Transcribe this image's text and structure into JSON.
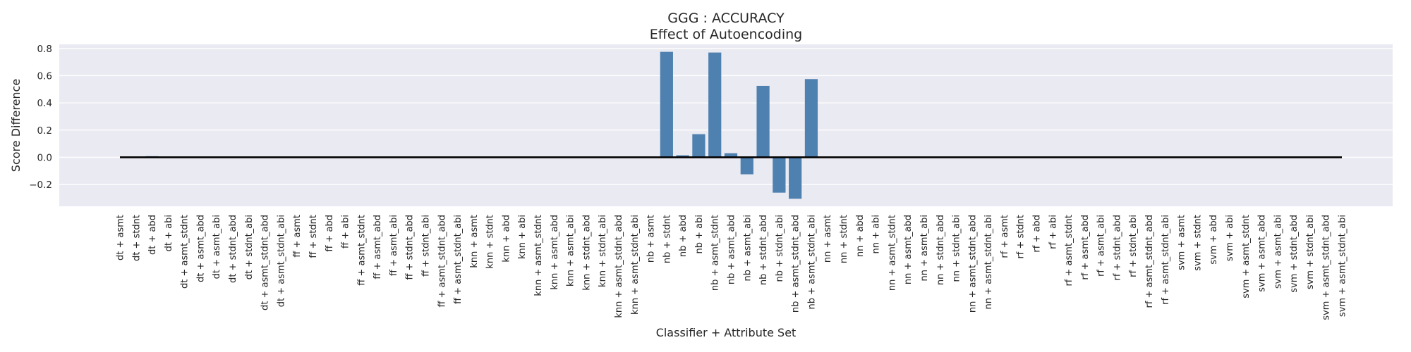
{
  "chart_data": {
    "type": "bar",
    "title": "GGG : ACCURACY",
    "subtitle": "Effect of Autoencoding",
    "xlabel": "Classifier + Attribute Set",
    "ylabel": "Score Difference",
    "ylim": [
      -0.36,
      0.83
    ],
    "yticks": [
      -0.2,
      0.0,
      0.2,
      0.4,
      0.6,
      0.8
    ],
    "ytick_labels": [
      "−0.2",
      "0.0",
      "0.2",
      "0.4",
      "0.6",
      "0.8"
    ],
    "grid": true,
    "bar_color": "#4f81b0",
    "zero_line_color": "#000000",
    "plot_background": "#eaeaf2",
    "categories": [
      "dt + asmt",
      "dt + stdnt",
      "dt + abd",
      "dt + abi",
      "dt + asmt_stdnt",
      "dt + asmt_abd",
      "dt + asmt_abi",
      "dt + stdnt_abd",
      "dt + stdnt_abi",
      "dt + asmt_stdnt_abd",
      "dt + asmt_stdnt_abi",
      "ff + asmt",
      "ff + stdnt",
      "ff + abd",
      "ff + abi",
      "ff + asmt_stdnt",
      "ff + asmt_abd",
      "ff + asmt_abi",
      "ff + stdnt_abd",
      "ff + stdnt_abi",
      "ff + asmt_stdnt_abd",
      "ff + asmt_stdnt_abi",
      "knn + asmt",
      "knn + stdnt",
      "knn + abd",
      "knn + abi",
      "knn + asmt_stdnt",
      "knn + asmt_abd",
      "knn + asmt_abi",
      "knn + stdnt_abd",
      "knn + stdnt_abi",
      "knn + asmt_stdnt_abd",
      "knn + asmt_stdnt_abi",
      "nb + asmt",
      "nb + stdnt",
      "nb + abd",
      "nb + abi",
      "nb + asmt_stdnt",
      "nb + asmt_abd",
      "nb + asmt_abi",
      "nb + stdnt_abd",
      "nb + stdnt_abi",
      "nb + asmt_stdnt_abd",
      "nb + asmt_stdnt_abi",
      "nn + asmt",
      "nn + stdnt",
      "nn + abd",
      "nn + abi",
      "nn + asmt_stdnt",
      "nn + asmt_abd",
      "nn + asmt_abi",
      "nn + stdnt_abd",
      "nn + stdnt_abi",
      "nn + asmt_stdnt_abd",
      "nn + asmt_stdnt_abi",
      "rf + asmt",
      "rf + stdnt",
      "rf + abd",
      "rf + abi",
      "rf + asmt_stdnt",
      "rf + asmt_abd",
      "rf + asmt_abi",
      "rf + stdnt_abd",
      "rf + stdnt_abi",
      "rf + asmt_stdnt_abd",
      "rf + asmt_stdnt_abi",
      "svm + asmt",
      "svm + stdnt",
      "svm + abd",
      "svm + abi",
      "svm + asmt_stdnt",
      "svm + asmt_abd",
      "svm + asmt_abi",
      "svm + stdnt_abd",
      "svm + stdnt_abi",
      "svm + asmt_stdnt_abd",
      "svm + asmt_stdnt_abi"
    ],
    "values": [
      0,
      0,
      0.008,
      0,
      0,
      0,
      0,
      0,
      0,
      0,
      0,
      0,
      0,
      0,
      0,
      0,
      0,
      0,
      0,
      0,
      0,
      0,
      0,
      0,
      0,
      0,
      0,
      0,
      0,
      0,
      0,
      0,
      0,
      0,
      0.775,
      0.015,
      0.17,
      0.77,
      0.03,
      -0.125,
      0.525,
      -0.26,
      -0.305,
      0.575,
      0,
      0,
      0,
      0,
      0,
      0,
      0,
      0,
      0,
      0,
      0,
      0,
      0,
      0,
      0,
      0,
      0,
      0,
      0,
      0,
      0,
      0,
      0,
      0,
      0,
      0,
      0,
      0,
      0,
      0,
      0,
      0,
      0
    ]
  }
}
